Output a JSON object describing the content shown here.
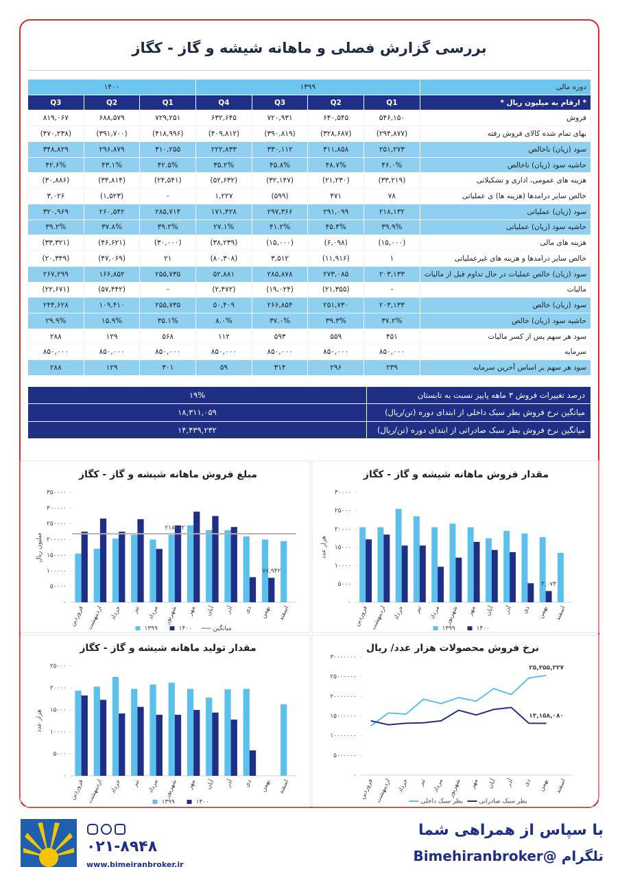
{
  "header": {
    "title": "بررسی گزارش فصلی و ماهانه شیشه و گاز - کگاز"
  },
  "table": {
    "header_top": [
      "دوره مالی",
      "۱۳۹۹",
      "۱۴۰۰"
    ],
    "header_sub": [
      "* ارقام به میلیون ریال *",
      "Q1",
      "Q2",
      "Q3",
      "Q4",
      "Q1",
      "Q2",
      "Q3"
    ],
    "rows": [
      [
        "فروش",
        "۵۴۶,۱۵۰",
        "۶۴۰,۵۴۵",
        "۷۲۰,۹۳۱",
        "۶۳۲,۶۴۵",
        "۷۲۹,۲۵۱",
        "۶۸۸,۵۷۹",
        "۸۱۹,۰۶۷"
      ],
      [
        "بهای تمام شده کالای فروش رفته",
        "(۲۹۴,۸۷۷)",
        "(۳۲۸,۶۸۷)",
        "(۳۹۰,۸۱۹)",
        "(۴۰۹,۸۱۲)",
        "(۴۱۸,۹۹۶)",
        "(۳۹۱,۷۰۰)",
        "(۴۷۰,۲۳۸)"
      ],
      [
        "سود (زیان) ناخالص",
        "۲۵۱,۲۷۳",
        "۳۱۱,۸۵۸",
        "۳۳۰,۱۱۲",
        "۲۲۲,۸۳۳",
        "۳۱۰,۲۵۵",
        "۲۹۶,۸۷۹",
        "۳۴۸,۸۲۹"
      ],
      [
        "حاشیه سود (زیان) ناخالص",
        "۴۶.۰%",
        "۴۸.۷%",
        "۴۵.۸%",
        "۳۵.۲%",
        "۴۲.۵%",
        "۴۳.۱%",
        "۴۲.۶%"
      ],
      [
        "هزینه های عمومی، اداری و تشکیلاتی",
        "(۳۳,۲۱۹)",
        "(۲۱,۲۳۰)",
        "(۳۲,۱۴۷)",
        "(۵۲,۶۳۲)",
        "(۲۴,۵۴۱)",
        "(۳۴,۸۱۴)",
        "(۳۰,۸۸۶)"
      ],
      [
        "خالص سایر درامدها (هزینه ها) ی عملیاتی",
        "۷۸",
        "۴۷۱",
        "(۵۹۹)",
        "۱,۲۲۷",
        "-",
        "(۱,۵۲۳)",
        "۳,۰۲۶"
      ],
      [
        "سود (زیان) عملیاتی",
        "۲۱۸,۱۳۲",
        "۲۹۱,۰۹۹",
        "۲۹۷,۳۶۶",
        "۱۷۱,۴۲۸",
        "۲۸۵,۷۱۴",
        "۲۶۰,۵۴۲",
        "۳۲۰,۹۶۹"
      ],
      [
        "حاشیه سود (زیان) عملیاتی",
        "۳۹.۹%",
        "۴۵.۴%",
        "۴۱.۲%",
        "۲۷.۱%",
        "۳۹.۲%",
        "۳۷.۸%",
        "۳۹.۲%"
      ],
      [
        "هزینه های مالی",
        "(۱۵,۰۰۰)",
        "(۶,۰۹۸)",
        "(۱۵,۰۰۰)",
        "(۳۸,۲۳۹)",
        "(۳۰,۰۰۰)",
        "(۴۶,۶۲۱)",
        "(۳۳,۳۲۱)"
      ],
      [
        "خالص سایر درامدها و هزینه های غیرعملیاتی",
        "۱",
        "(۱۱,۹۱۶)",
        "۳,۵۱۲",
        "(۸۰,۳۰۸)",
        "۲۱",
        "(۴۷,۰۶۹)",
        "(۲۰,۳۴۹)"
      ],
      [
        "سود (زیان) خالص عملیات در حال تداوم قبل از مالیات",
        "۲۰۳,۱۳۳",
        "۲۷۳,۰۸۵",
        "۲۸۵,۸۷۸",
        "۵۲,۸۸۱",
        "۲۵۵,۷۳۵",
        "۱۶۶,۸۵۲",
        "۲۶۷,۲۹۹"
      ],
      [
        "مالیات",
        "-",
        "(۲۱,۳۵۵)",
        "(۱۹,۰۲۴)",
        "(۲,۴۷۲)",
        "-",
        "(۵۷,۴۴۲)",
        "(۲۲,۶۷۱)"
      ],
      [
        "سود (زیان) خالص",
        "۲۰۳,۱۳۳",
        "۲۵۱,۷۳۰",
        "۲۶۶,۸۵۴",
        "۵۰,۴۰۹",
        "۲۵۵,۷۳۵",
        "۱۰۹,۴۱۰",
        "۲۴۴,۶۲۸"
      ],
      [
        "حاشیه سود (زیان) خالص",
        "۳۷.۲%",
        "۳۹.۳%",
        "۳۷.۰%",
        "۸.۰%",
        "۳۵.۱%",
        "۱۵.۹%",
        "۲۹.۹%"
      ],
      [
        "سود هر سهم پس از کسر مالیات",
        "۴۵۱",
        "۵۵۹",
        "۵۹۳",
        "۱۱۲",
        "۵۶۸",
        "۱۲۹",
        "۲۸۸"
      ],
      [
        "سرمایه",
        "۸۵۰,۰۰۰",
        "۸۵۰,۰۰۰",
        "۸۵۰,۰۰۰",
        "۸۵۰,۰۰۰",
        "۸۵۰,۰۰۰",
        "۸۵۰,۰۰۰",
        "۸۵۰,۰۰۰"
      ],
      [
        "سود هر سهم بر اساس آخرین سرمایه",
        "۲۳۹",
        "۲۹۶",
        "۳۱۴",
        "۵۹",
        "۳۰۱",
        "۱۲۹",
        "۲۸۸"
      ]
    ]
  },
  "summary": [
    [
      "درصد تغییرات فروش ۳ ماهه پاییز نسبت به تابستان",
      "۱۹%"
    ],
    [
      "میانگین نرخ فروش بطر سبک داخلی از ابتدای دوره (تن/ریال)",
      "۱۸,۳۱۱,۰۵۹"
    ],
    [
      "میانگین نرخ فروش بطر سبک صادراتی از ابتدای دوره (تن/ریال)",
      "۱۴,۴۳۹,۲۳۲"
    ]
  ],
  "chart_data": [
    {
      "type": "bar",
      "title": "مبلغ فروش ماهانه شیشه و گاز - کگاز",
      "y_label": "میلیون ریال",
      "categories": [
        "فروردین",
        "اردیبهشت",
        "خرداد",
        "تیر",
        "مرداد",
        "شهریور",
        "مهر",
        "آبان",
        "آذر",
        "دی",
        "بهمن",
        "اسفند"
      ],
      "ylim": [
        0,
        350000
      ],
      "yticks": [
        {
          "value": 0,
          "label": "۰"
        },
        {
          "value": 50000,
          "label": "۵۰۰۰۰"
        },
        {
          "value": 100000,
          "label": "۱۰۰۰۰۰"
        },
        {
          "value": 150000,
          "label": "۱۵۰۰۰۰"
        },
        {
          "value": 200000,
          "label": "۲۰۰۰۰۰"
        },
        {
          "value": 250000,
          "label": "۲۵۰۰۰۰"
        },
        {
          "value": 300000,
          "label": "۳۰۰۰۰۰"
        },
        {
          "value": 350000,
          "label": "۳۵۰۰۰۰"
        }
      ],
      "series": [
        {
          "name": "۱۳۹۹",
          "color": "#5bc0eb",
          "values": [
            155000,
            171000,
            203000,
            215000,
            200000,
            215000,
            245000,
            230000,
            230000,
            210000,
            200000,
            195000
          ]
        },
        {
          "name": "۱۴۰۰",
          "color": "#1f2f86",
          "values": [
            225000,
            267000,
            225000,
            265000,
            170000,
            245000,
            289000,
            275000,
            240000,
            80000,
            77942,
            null
          ],
          "value_labels": [
            null,
            null,
            null,
            null,
            null,
            null,
            null,
            null,
            null,
            null,
            "۷۷,۹۴۲",
            null
          ]
        }
      ],
      "average": {
        "name": "میانگین",
        "value": 218162,
        "label": "۲۱۸۱۶۲",
        "color": "#b0b0b0"
      }
    },
    {
      "type": "bar",
      "title": "مقدار فروش ماهانه شیشه و گاز - کگاز",
      "y_label": "هزار عدد",
      "categories": [
        "فروردین",
        "اردیبهشت",
        "خرداد",
        "تیر",
        "مرداد",
        "شهریور",
        "مهر",
        "آبان",
        "آذر",
        "دی",
        "بهمن",
        "اسفند"
      ],
      "ylim": [
        0,
        30000
      ],
      "yticks": [
        {
          "value": 0,
          "label": "۰"
        },
        {
          "value": 5000,
          "label": "۵۰۰۰"
        },
        {
          "value": 10000,
          "label": "۱۰۰۰۰"
        },
        {
          "value": 15000,
          "label": "۱۵۰۰۰"
        },
        {
          "value": 20000,
          "label": "۲۰۰۰۰"
        },
        {
          "value": 25000,
          "label": "۲۵۰۰۰"
        },
        {
          "value": 30000,
          "label": "۳۰۰۰۰"
        }
      ],
      "series": [
        {
          "name": "۱۳۹۹",
          "color": "#5bc0eb",
          "values": [
            20500,
            20500,
            25500,
            23500,
            20500,
            21500,
            20500,
            17500,
            19500,
            18800,
            17800,
            13500
          ]
        },
        {
          "name": "۱۴۰۰",
          "color": "#1f2f86",
          "values": [
            17200,
            18500,
            15500,
            15500,
            9700,
            12200,
            16500,
            14300,
            13700,
            5200,
            3074,
            null
          ],
          "value_labels": [
            null,
            null,
            null,
            null,
            null,
            null,
            null,
            null,
            null,
            null,
            "۳,۰۷۴",
            null
          ]
        }
      ]
    },
    {
      "type": "bar",
      "title": "مقدار تولید ماهانه شیشه و گاز - کگاز",
      "y_label": "هزار عدد",
      "categories": [
        "فروردین",
        "اردیبهشت",
        "خرداد",
        "تیر",
        "مرداد",
        "شهریور",
        "مهر",
        "آبان",
        "آذر",
        "دی",
        "بهمن",
        "اسفند"
      ],
      "ylim": [
        0,
        25000
      ],
      "yticks": [
        {
          "value": 0,
          "label": "۰"
        },
        {
          "value": 5000,
          "label": "۵۰۰۰"
        },
        {
          "value": 10000,
          "label": "۱۰۰۰۰"
        },
        {
          "value": 15000,
          "label": "۱۵۰۰۰"
        },
        {
          "value": 20000,
          "label": "۲۰۰۰۰"
        },
        {
          "value": 25000,
          "label": "۲۵۰۰۰"
        }
      ],
      "series": [
        {
          "name": "۱۳۹۹",
          "color": "#5bc0eb",
          "values": [
            19400,
            20300,
            22500,
            19800,
            20800,
            21200,
            19800,
            17800,
            19700,
            19800,
            null,
            16300
          ]
        },
        {
          "name": "۱۴۰۰",
          "color": "#1f2f86",
          "values": [
            18300,
            17300,
            14200,
            15700,
            13900,
            13900,
            15000,
            14400,
            12800,
            5800,
            null,
            null
          ]
        }
      ]
    },
    {
      "type": "line",
      "title": "نرخ فروش محصولات   هزار عدد/ ریال",
      "categories": [
        "فروردین",
        "اردیبهشت",
        "خرداد",
        "تیر",
        "مرداد",
        "شهریور",
        "مهر",
        "آبان",
        "آذر",
        "دی",
        "بهمن",
        "اسفند"
      ],
      "ylim": [
        0,
        30000000
      ],
      "yticks": [
        {
          "value": 0,
          "label": "۰"
        },
        {
          "value": 5000000,
          "label": "۵۰۰۰۰۰۰"
        },
        {
          "value": 10000000,
          "label": "۱۰۰۰۰۰۰۰"
        },
        {
          "value": 15000000,
          "label": "۱۵۰۰۰۰۰۰"
        },
        {
          "value": 20000000,
          "label": "۲۰۰۰۰۰۰۰"
        },
        {
          "value": 25000000,
          "label": "۲۵۰۰۰۰۰۰"
        },
        {
          "value": 30000000,
          "label": "۳۰۰۰۰۰۰۰"
        }
      ],
      "series": [
        {
          "name": "بطر سبک داخلی",
          "color": "#5bc0eb",
          "values": [
            12500000,
            15800000,
            15500000,
            19300000,
            18200000,
            19700000,
            18800000,
            22000000,
            20500000,
            24700000,
            25355237,
            null
          ],
          "value_labels": [
            null,
            null,
            null,
            null,
            null,
            null,
            null,
            null,
            null,
            null,
            "۲۵,۳۵۵,۲۳۷",
            null
          ]
        },
        {
          "name": "بطر سبک صادراتی",
          "color": "#1f2f86",
          "values": [
            13800000,
            12800000,
            13200000,
            13300000,
            13800000,
            16500000,
            15300000,
            16700000,
            17200000,
            13200000,
            13158080,
            null
          ],
          "value_labels": [
            null,
            null,
            null,
            null,
            null,
            null,
            null,
            null,
            null,
            null,
            "۱۳,۱۵۸,۰۸۰",
            null
          ]
        }
      ]
    }
  ],
  "footer": {
    "thanks": "با سپاس از همراهی شما",
    "telegram": "تلگرام @Bimehiranbroker",
    "phone": "۰۲۱-۸۹۴۸",
    "website": "www.bimeiranbroker.ir"
  }
}
